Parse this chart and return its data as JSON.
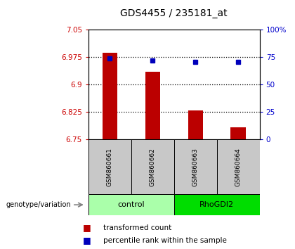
{
  "title": "GDS4455 / 235181_at",
  "samples": [
    "GSM860661",
    "GSM860662",
    "GSM860663",
    "GSM860664"
  ],
  "bar_values": [
    6.988,
    6.935,
    6.83,
    6.783
  ],
  "percentile_values": [
    74,
    72,
    71,
    71
  ],
  "ylim_left": [
    6.75,
    7.05
  ],
  "ylim_right": [
    0,
    100
  ],
  "yticks_left": [
    6.75,
    6.825,
    6.9,
    6.975,
    7.05
  ],
  "yticks_right": [
    0,
    25,
    50,
    75,
    100
  ],
  "ytick_labels_left": [
    "6.75",
    "6.825",
    "6.9",
    "6.975",
    "7.05"
  ],
  "ytick_labels_right": [
    "0",
    "25",
    "50",
    "75",
    "100%"
  ],
  "groups": [
    {
      "label": "control",
      "indices": [
        0,
        1
      ],
      "color": "#AAFFAA"
    },
    {
      "label": "RhoGDI2",
      "indices": [
        2,
        3
      ],
      "color": "#00DD00"
    }
  ],
  "bar_color": "#BB0000",
  "dot_color": "#0000BB",
  "bar_width": 0.35,
  "sample_box_color": "#C8C8C8",
  "legend_red_label": "transformed count",
  "legend_blue_label": "percentile rank within the sample",
  "genotype_label": "genotype/variation"
}
